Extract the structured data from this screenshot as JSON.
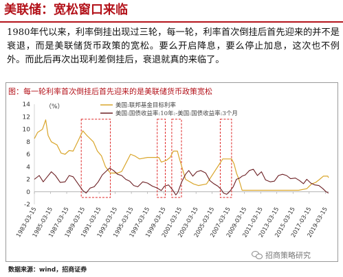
{
  "header": {
    "title": "美联储：宽松窗口来临"
  },
  "body_text": "1980年代以来，利率倒挂出现过三轮，每一轮，利率首次倒挂后首先迎来的并不是衰退，而是美联储货币政策的宽松。要么开启降息，要么停止加息，这次也不例外。而此后再次出现利差倒挂后，衰退就真的来临了。",
  "chart_data": {
    "type": "line",
    "title": "图：每一轮利率首次倒挂后首先迎来的是美联储货币政策宽松",
    "ylabel": "（%）",
    "ylim": [
      -2,
      14
    ],
    "yticks": [
      -2,
      0,
      2,
      4,
      6,
      8,
      10,
      12,
      14
    ],
    "xlim": [
      1983.2,
      2019.6
    ],
    "xtick_values": [
      1983.2,
      1985.2,
      1987.2,
      1989.2,
      1991.2,
      1993.2,
      1995.2,
      1997.2,
      1999.2,
      2001.2,
      2003.2,
      2005.2,
      2007.2,
      2009.2,
      2011.2,
      2013.2,
      2015.2,
      2017.2,
      2019.2
    ],
    "xtick_labels": [
      "1983-03-15",
      "1985-03-15",
      "1987-03-15",
      "1989-03-15",
      "1991-03-15",
      "1993-03-15",
      "1995-03-15",
      "1997-03-15",
      "1999-03-15",
      "2001-03-15",
      "2003-03-15",
      "2005-03-15",
      "2007-03-15",
      "2009-03-15",
      "2011-03-15",
      "2013-03-15",
      "2015-03-15",
      "2017-03-15",
      "2019-03-15"
    ],
    "legend_position": "top",
    "highlight_boxes": [
      {
        "x0": 1989.0,
        "x1": 1992.6
      },
      {
        "x0": 1998.4,
        "x1": 1999.4
      },
      {
        "x0": 2000.2,
        "x1": 2001.4
      },
      {
        "x0": 2006.2,
        "x1": 2007.6
      }
    ],
    "series": [
      {
        "name": "美国:联邦基金目标利率",
        "color": "#d9a52a",
        "points": [
          [
            1983.2,
            8.5
          ],
          [
            1983.6,
            9.5
          ],
          [
            1984.2,
            10.0
          ],
          [
            1984.6,
            11.5
          ],
          [
            1984.9,
            9.0
          ],
          [
            1985.3,
            8.0
          ],
          [
            1986.0,
            7.5
          ],
          [
            1986.5,
            6.2
          ],
          [
            1987.0,
            6.0
          ],
          [
            1987.5,
            6.6
          ],
          [
            1988.0,
            6.5
          ],
          [
            1988.6,
            8.1
          ],
          [
            1989.2,
            9.75
          ],
          [
            1989.7,
            9.0
          ],
          [
            1990.5,
            8.0
          ],
          [
            1991.0,
            6.5
          ],
          [
            1991.5,
            5.75
          ],
          [
            1992.0,
            4.0
          ],
          [
            1992.6,
            3.0
          ],
          [
            1993.5,
            3.0
          ],
          [
            1994.0,
            3.25
          ],
          [
            1994.5,
            4.5
          ],
          [
            1995.1,
            6.0
          ],
          [
            1995.6,
            5.75
          ],
          [
            1996.2,
            5.25
          ],
          [
            1997.2,
            5.5
          ],
          [
            1998.6,
            5.5
          ],
          [
            1998.9,
            4.75
          ],
          [
            1999.5,
            5.0
          ],
          [
            2000.0,
            5.5
          ],
          [
            2000.4,
            6.5
          ],
          [
            2000.9,
            6.5
          ],
          [
            2001.1,
            5.5
          ],
          [
            2001.5,
            3.75
          ],
          [
            2001.9,
            2.0
          ],
          [
            2002.9,
            1.25
          ],
          [
            2003.5,
            1.0
          ],
          [
            2004.5,
            1.25
          ],
          [
            2005.0,
            2.25
          ],
          [
            2005.5,
            3.25
          ],
          [
            2006.0,
            4.25
          ],
          [
            2006.5,
            5.25
          ],
          [
            2007.6,
            5.25
          ],
          [
            2007.9,
            4.5
          ],
          [
            2008.2,
            3.0
          ],
          [
            2008.5,
            2.0
          ],
          [
            2008.9,
            0.25
          ],
          [
            2015.9,
            0.25
          ],
          [
            2016.9,
            0.5
          ],
          [
            2017.5,
            1.25
          ],
          [
            2018.0,
            1.5
          ],
          [
            2018.5,
            2.0
          ],
          [
            2018.95,
            2.5
          ],
          [
            2019.5,
            2.5
          ],
          [
            2019.6,
            2.25
          ]
        ]
      },
      {
        "name": "美国:国债收益率:10年:-美国:国债收益率:3个月",
        "color": "#6b1e22",
        "points": [
          [
            1983.2,
            2.0
          ],
          [
            1983.8,
            2.6
          ],
          [
            1984.3,
            1.6
          ],
          [
            1984.8,
            2.4
          ],
          [
            1985.3,
            3.2
          ],
          [
            1985.8,
            2.6
          ],
          [
            1986.4,
            1.5
          ],
          [
            1987.0,
            1.6
          ],
          [
            1987.5,
            2.6
          ],
          [
            1988.0,
            2.4
          ],
          [
            1988.6,
            1.3
          ],
          [
            1989.2,
            0.2
          ],
          [
            1989.6,
            -0.2
          ],
          [
            1990.1,
            0.6
          ],
          [
            1990.6,
            0.8
          ],
          [
            1991.1,
            1.6
          ],
          [
            1991.6,
            2.7
          ],
          [
            1992.1,
            3.3
          ],
          [
            1992.5,
            3.8
          ],
          [
            1993.0,
            3.4
          ],
          [
            1993.5,
            2.8
          ],
          [
            1994.0,
            2.6
          ],
          [
            1994.5,
            2.0
          ],
          [
            1995.0,
            1.7
          ],
          [
            1995.5,
            1.0
          ],
          [
            1996.0,
            0.8
          ],
          [
            1996.6,
            1.6
          ],
          [
            1997.2,
            1.4
          ],
          [
            1997.8,
            0.9
          ],
          [
            1998.4,
            0.6
          ],
          [
            1998.9,
            0.2
          ],
          [
            1999.3,
            0.9
          ],
          [
            1999.8,
            1.1
          ],
          [
            2000.3,
            0.3
          ],
          [
            2000.7,
            -0.5
          ],
          [
            2000.95,
            -0.1
          ],
          [
            2001.4,
            1.5
          ],
          [
            2001.9,
            2.8
          ],
          [
            2002.3,
            3.4
          ],
          [
            2002.8,
            2.5
          ],
          [
            2003.3,
            3.2
          ],
          [
            2003.8,
            3.4
          ],
          [
            2004.4,
            3.0
          ],
          [
            2004.9,
            1.8
          ],
          [
            2005.4,
            1.3
          ],
          [
            2005.9,
            0.9
          ],
          [
            2006.3,
            0.4
          ],
          [
            2006.6,
            -0.2
          ],
          [
            2007.0,
            -0.4
          ],
          [
            2007.4,
            0.1
          ],
          [
            2007.8,
            0.8
          ],
          [
            2008.2,
            2.0
          ],
          [
            2008.6,
            2.2
          ],
          [
            2008.9,
            2.5
          ],
          [
            2009.3,
            2.7
          ],
          [
            2009.8,
            3.4
          ],
          [
            2010.3,
            3.6
          ],
          [
            2010.8,
            2.6
          ],
          [
            2011.3,
            3.2
          ],
          [
            2011.8,
            1.9
          ],
          [
            2012.4,
            1.6
          ],
          [
            2012.9,
            1.7
          ],
          [
            2013.4,
            2.6
          ],
          [
            2013.9,
            2.8
          ],
          [
            2014.4,
            2.6
          ],
          [
            2014.9,
            2.1
          ],
          [
            2015.5,
            2.2
          ],
          [
            2016.0,
            1.8
          ],
          [
            2016.5,
            1.3
          ],
          [
            2016.9,
            2.0
          ],
          [
            2017.4,
            1.4
          ],
          [
            2017.9,
            1.1
          ],
          [
            2018.4,
            1.0
          ],
          [
            2018.9,
            0.5
          ],
          [
            2019.3,
            0.0
          ],
          [
            2019.6,
            -0.2
          ]
        ]
      }
    ]
  },
  "source": "数据来源：wind，招商证券",
  "watermark": "招商策略研究"
}
